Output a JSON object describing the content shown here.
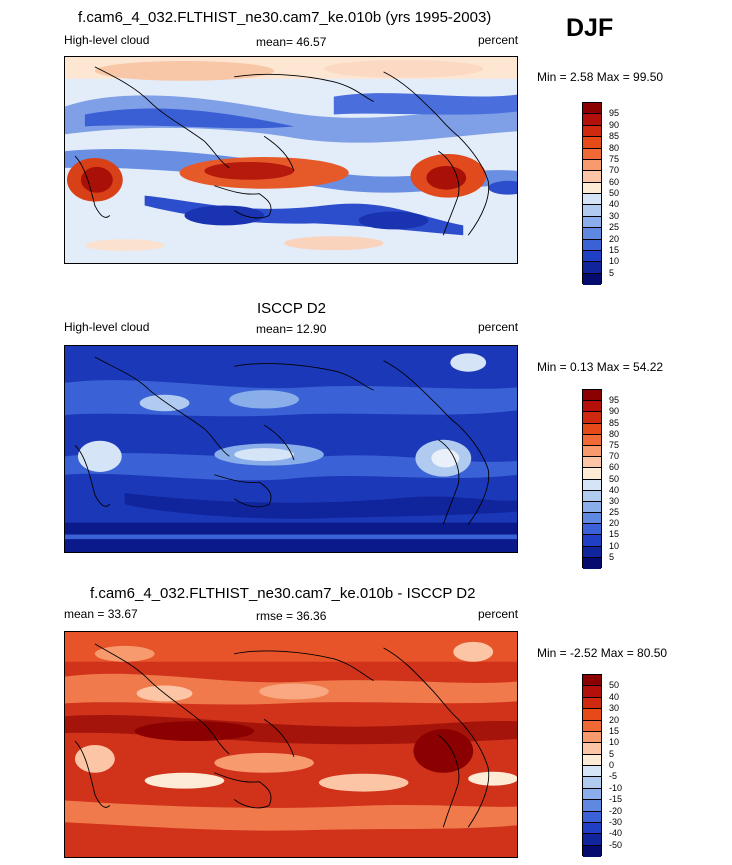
{
  "season": "DJF",
  "panels": [
    {
      "id": "model",
      "title": "f.cam6_4_032.FLTHIST_ne30.cam7_ke.010b (yrs 1995-2003)",
      "left_label": "High-level cloud",
      "center_label": "mean=  46.57",
      "right_label": "percent",
      "minmax_label": "Min =   2.58 Max =  99.50",
      "colorbar": {
        "ticks": [
          "95",
          "90",
          "85",
          "80",
          "75",
          "70",
          "60",
          "50",
          "40",
          "30",
          "25",
          "20",
          "15",
          "10",
          "5"
        ],
        "colors": [
          "#8b0000",
          "#b3100c",
          "#cf2a10",
          "#e64a19",
          "#f06a38",
          "#f79a6e",
          "#fcc6a6",
          "#fdebd6",
          "#d6e4f7",
          "#b1cbf0",
          "#8aaeea",
          "#5f89e0",
          "#3a62d6",
          "#1f3fc4",
          "#10249c",
          "#050c6e"
        ]
      }
    },
    {
      "id": "obs",
      "title": "ISCCP D2",
      "left_label": "High-level cloud",
      "center_label": "mean=  12.90",
      "right_label": "percent",
      "minmax_label": "Min =   0.13 Max =  54.22",
      "colorbar": {
        "ticks": [
          "95",
          "90",
          "85",
          "80",
          "75",
          "70",
          "60",
          "50",
          "40",
          "30",
          "25",
          "20",
          "15",
          "10",
          "5"
        ],
        "colors": [
          "#8b0000",
          "#b3100c",
          "#cf2a10",
          "#e64a19",
          "#f06a38",
          "#f79a6e",
          "#fcc6a6",
          "#fdebd6",
          "#d6e4f7",
          "#b1cbf0",
          "#8aaeea",
          "#5f89e0",
          "#3a62d6",
          "#1f3fc4",
          "#10249c",
          "#050c6e"
        ]
      }
    },
    {
      "id": "diff",
      "title": "f.cam6_4_032.FLTHIST_ne30.cam7_ke.010b - ISCCP D2",
      "left_label": "mean =  33.67",
      "center_label": "rmse =  36.36",
      "right_label": "percent",
      "minmax_label": "Min =  -2.52 Max =  80.50",
      "colorbar": {
        "ticks": [
          "50",
          "40",
          "30",
          "20",
          "15",
          "10",
          "5",
          "0",
          "-5",
          "-10",
          "-15",
          "-20",
          "-30",
          "-40",
          "-50"
        ],
        "colors": [
          "#8b0000",
          "#b3100c",
          "#cf2a10",
          "#e64a19",
          "#f06a38",
          "#f79a6e",
          "#fcc6a6",
          "#fdebd6",
          "#d6e4f7",
          "#b1cbf0",
          "#8aaeea",
          "#5f89e0",
          "#3a62d6",
          "#1f3fc4",
          "#10249c",
          "#050c6e"
        ]
      }
    }
  ]
}
